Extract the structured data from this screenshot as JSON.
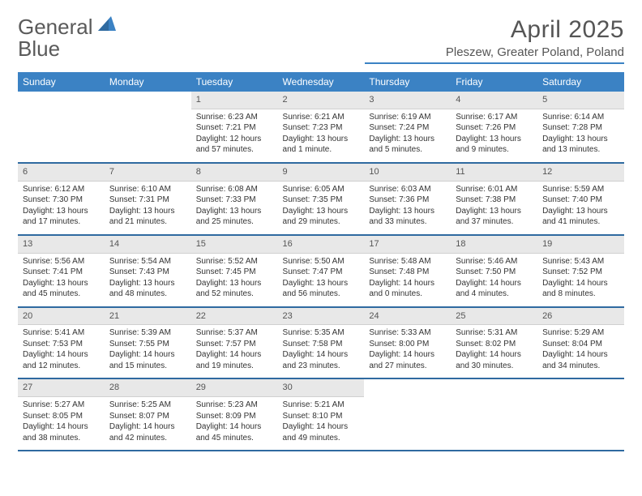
{
  "brand": {
    "part1": "General",
    "part2": "Blue"
  },
  "title": "April 2025",
  "location": "Pleszew, Greater Poland, Poland",
  "dayHeaders": [
    "Sunday",
    "Monday",
    "Tuesday",
    "Wednesday",
    "Thursday",
    "Friday",
    "Saturday"
  ],
  "colors": {
    "accent": "#3b82c4",
    "headerRow": "#e8e8e8",
    "ruleDark": "#2f6aa0"
  },
  "weeks": [
    [
      null,
      null,
      {
        "n": "1",
        "sunrise": "Sunrise: 6:23 AM",
        "sunset": "Sunset: 7:21 PM",
        "day1": "Daylight: 12 hours",
        "day2": "and 57 minutes."
      },
      {
        "n": "2",
        "sunrise": "Sunrise: 6:21 AM",
        "sunset": "Sunset: 7:23 PM",
        "day1": "Daylight: 13 hours",
        "day2": "and 1 minute."
      },
      {
        "n": "3",
        "sunrise": "Sunrise: 6:19 AM",
        "sunset": "Sunset: 7:24 PM",
        "day1": "Daylight: 13 hours",
        "day2": "and 5 minutes."
      },
      {
        "n": "4",
        "sunrise": "Sunrise: 6:17 AM",
        "sunset": "Sunset: 7:26 PM",
        "day1": "Daylight: 13 hours",
        "day2": "and 9 minutes."
      },
      {
        "n": "5",
        "sunrise": "Sunrise: 6:14 AM",
        "sunset": "Sunset: 7:28 PM",
        "day1": "Daylight: 13 hours",
        "day2": "and 13 minutes."
      }
    ],
    [
      {
        "n": "6",
        "sunrise": "Sunrise: 6:12 AM",
        "sunset": "Sunset: 7:30 PM",
        "day1": "Daylight: 13 hours",
        "day2": "and 17 minutes."
      },
      {
        "n": "7",
        "sunrise": "Sunrise: 6:10 AM",
        "sunset": "Sunset: 7:31 PM",
        "day1": "Daylight: 13 hours",
        "day2": "and 21 minutes."
      },
      {
        "n": "8",
        "sunrise": "Sunrise: 6:08 AM",
        "sunset": "Sunset: 7:33 PM",
        "day1": "Daylight: 13 hours",
        "day2": "and 25 minutes."
      },
      {
        "n": "9",
        "sunrise": "Sunrise: 6:05 AM",
        "sunset": "Sunset: 7:35 PM",
        "day1": "Daylight: 13 hours",
        "day2": "and 29 minutes."
      },
      {
        "n": "10",
        "sunrise": "Sunrise: 6:03 AM",
        "sunset": "Sunset: 7:36 PM",
        "day1": "Daylight: 13 hours",
        "day2": "and 33 minutes."
      },
      {
        "n": "11",
        "sunrise": "Sunrise: 6:01 AM",
        "sunset": "Sunset: 7:38 PM",
        "day1": "Daylight: 13 hours",
        "day2": "and 37 minutes."
      },
      {
        "n": "12",
        "sunrise": "Sunrise: 5:59 AM",
        "sunset": "Sunset: 7:40 PM",
        "day1": "Daylight: 13 hours",
        "day2": "and 41 minutes."
      }
    ],
    [
      {
        "n": "13",
        "sunrise": "Sunrise: 5:56 AM",
        "sunset": "Sunset: 7:41 PM",
        "day1": "Daylight: 13 hours",
        "day2": "and 45 minutes."
      },
      {
        "n": "14",
        "sunrise": "Sunrise: 5:54 AM",
        "sunset": "Sunset: 7:43 PM",
        "day1": "Daylight: 13 hours",
        "day2": "and 48 minutes."
      },
      {
        "n": "15",
        "sunrise": "Sunrise: 5:52 AM",
        "sunset": "Sunset: 7:45 PM",
        "day1": "Daylight: 13 hours",
        "day2": "and 52 minutes."
      },
      {
        "n": "16",
        "sunrise": "Sunrise: 5:50 AM",
        "sunset": "Sunset: 7:47 PM",
        "day1": "Daylight: 13 hours",
        "day2": "and 56 minutes."
      },
      {
        "n": "17",
        "sunrise": "Sunrise: 5:48 AM",
        "sunset": "Sunset: 7:48 PM",
        "day1": "Daylight: 14 hours",
        "day2": "and 0 minutes."
      },
      {
        "n": "18",
        "sunrise": "Sunrise: 5:46 AM",
        "sunset": "Sunset: 7:50 PM",
        "day1": "Daylight: 14 hours",
        "day2": "and 4 minutes."
      },
      {
        "n": "19",
        "sunrise": "Sunrise: 5:43 AM",
        "sunset": "Sunset: 7:52 PM",
        "day1": "Daylight: 14 hours",
        "day2": "and 8 minutes."
      }
    ],
    [
      {
        "n": "20",
        "sunrise": "Sunrise: 5:41 AM",
        "sunset": "Sunset: 7:53 PM",
        "day1": "Daylight: 14 hours",
        "day2": "and 12 minutes."
      },
      {
        "n": "21",
        "sunrise": "Sunrise: 5:39 AM",
        "sunset": "Sunset: 7:55 PM",
        "day1": "Daylight: 14 hours",
        "day2": "and 15 minutes."
      },
      {
        "n": "22",
        "sunrise": "Sunrise: 5:37 AM",
        "sunset": "Sunset: 7:57 PM",
        "day1": "Daylight: 14 hours",
        "day2": "and 19 minutes."
      },
      {
        "n": "23",
        "sunrise": "Sunrise: 5:35 AM",
        "sunset": "Sunset: 7:58 PM",
        "day1": "Daylight: 14 hours",
        "day2": "and 23 minutes."
      },
      {
        "n": "24",
        "sunrise": "Sunrise: 5:33 AM",
        "sunset": "Sunset: 8:00 PM",
        "day1": "Daylight: 14 hours",
        "day2": "and 27 minutes."
      },
      {
        "n": "25",
        "sunrise": "Sunrise: 5:31 AM",
        "sunset": "Sunset: 8:02 PM",
        "day1": "Daylight: 14 hours",
        "day2": "and 30 minutes."
      },
      {
        "n": "26",
        "sunrise": "Sunrise: 5:29 AM",
        "sunset": "Sunset: 8:04 PM",
        "day1": "Daylight: 14 hours",
        "day2": "and 34 minutes."
      }
    ],
    [
      {
        "n": "27",
        "sunrise": "Sunrise: 5:27 AM",
        "sunset": "Sunset: 8:05 PM",
        "day1": "Daylight: 14 hours",
        "day2": "and 38 minutes."
      },
      {
        "n": "28",
        "sunrise": "Sunrise: 5:25 AM",
        "sunset": "Sunset: 8:07 PM",
        "day1": "Daylight: 14 hours",
        "day2": "and 42 minutes."
      },
      {
        "n": "29",
        "sunrise": "Sunrise: 5:23 AM",
        "sunset": "Sunset: 8:09 PM",
        "day1": "Daylight: 14 hours",
        "day2": "and 45 minutes."
      },
      {
        "n": "30",
        "sunrise": "Sunrise: 5:21 AM",
        "sunset": "Sunset: 8:10 PM",
        "day1": "Daylight: 14 hours",
        "day2": "and 49 minutes."
      },
      null,
      null,
      null
    ]
  ]
}
